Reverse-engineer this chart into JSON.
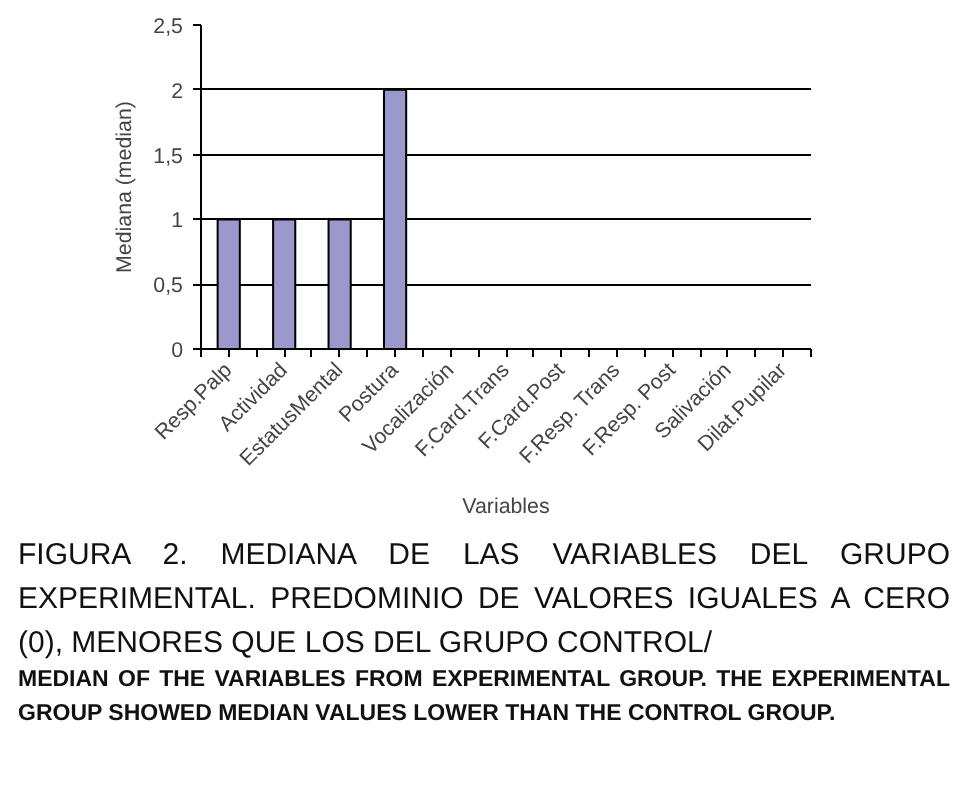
{
  "chart_data": {
    "type": "bar",
    "xlabel": "Variables",
    "ylabel": "Mediana (median)",
    "categories": [
      "Resp.Palp",
      "Actividad",
      "EstatusMental",
      "Postura",
      "Vocalización",
      "F.Card.Trans",
      "F.Card.Post",
      "F.Resp. Trans",
      "F.Resp. Post",
      "Salivación",
      "Dilat.Pupilar"
    ],
    "values": [
      1,
      1,
      1,
      2,
      0,
      0,
      0,
      0,
      0,
      0,
      0
    ],
    "color": "#9b98cc",
    "ylim": [
      0,
      2.5
    ],
    "yticks": [
      0,
      {
        "value": 0.5,
        "label": "0,5"
      },
      1,
      {
        "value": 1.5,
        "label": "1,5"
      },
      2,
      {
        "value": 2.5,
        "label": "2,5"
      }
    ],
    "grid": "y",
    "annotations": [
      "FIGURA 2. MEDIANA DE LAS VARIABLES DEL GRUPO EXPERIMENTAL. PREDOMINIO DE VALORES IGUALES A CERO (0), MENORES QUE LOS DEL GRUPO CONTROL/",
      "MEDIAN OF THE VARIABLES FROM EXPERIMENTAL GROUP. THE EXPERIMENTAL GROUP SHOWED MEDIAN VALUES LOWER THAN THE CONTROL GROUP."
    ]
  }
}
